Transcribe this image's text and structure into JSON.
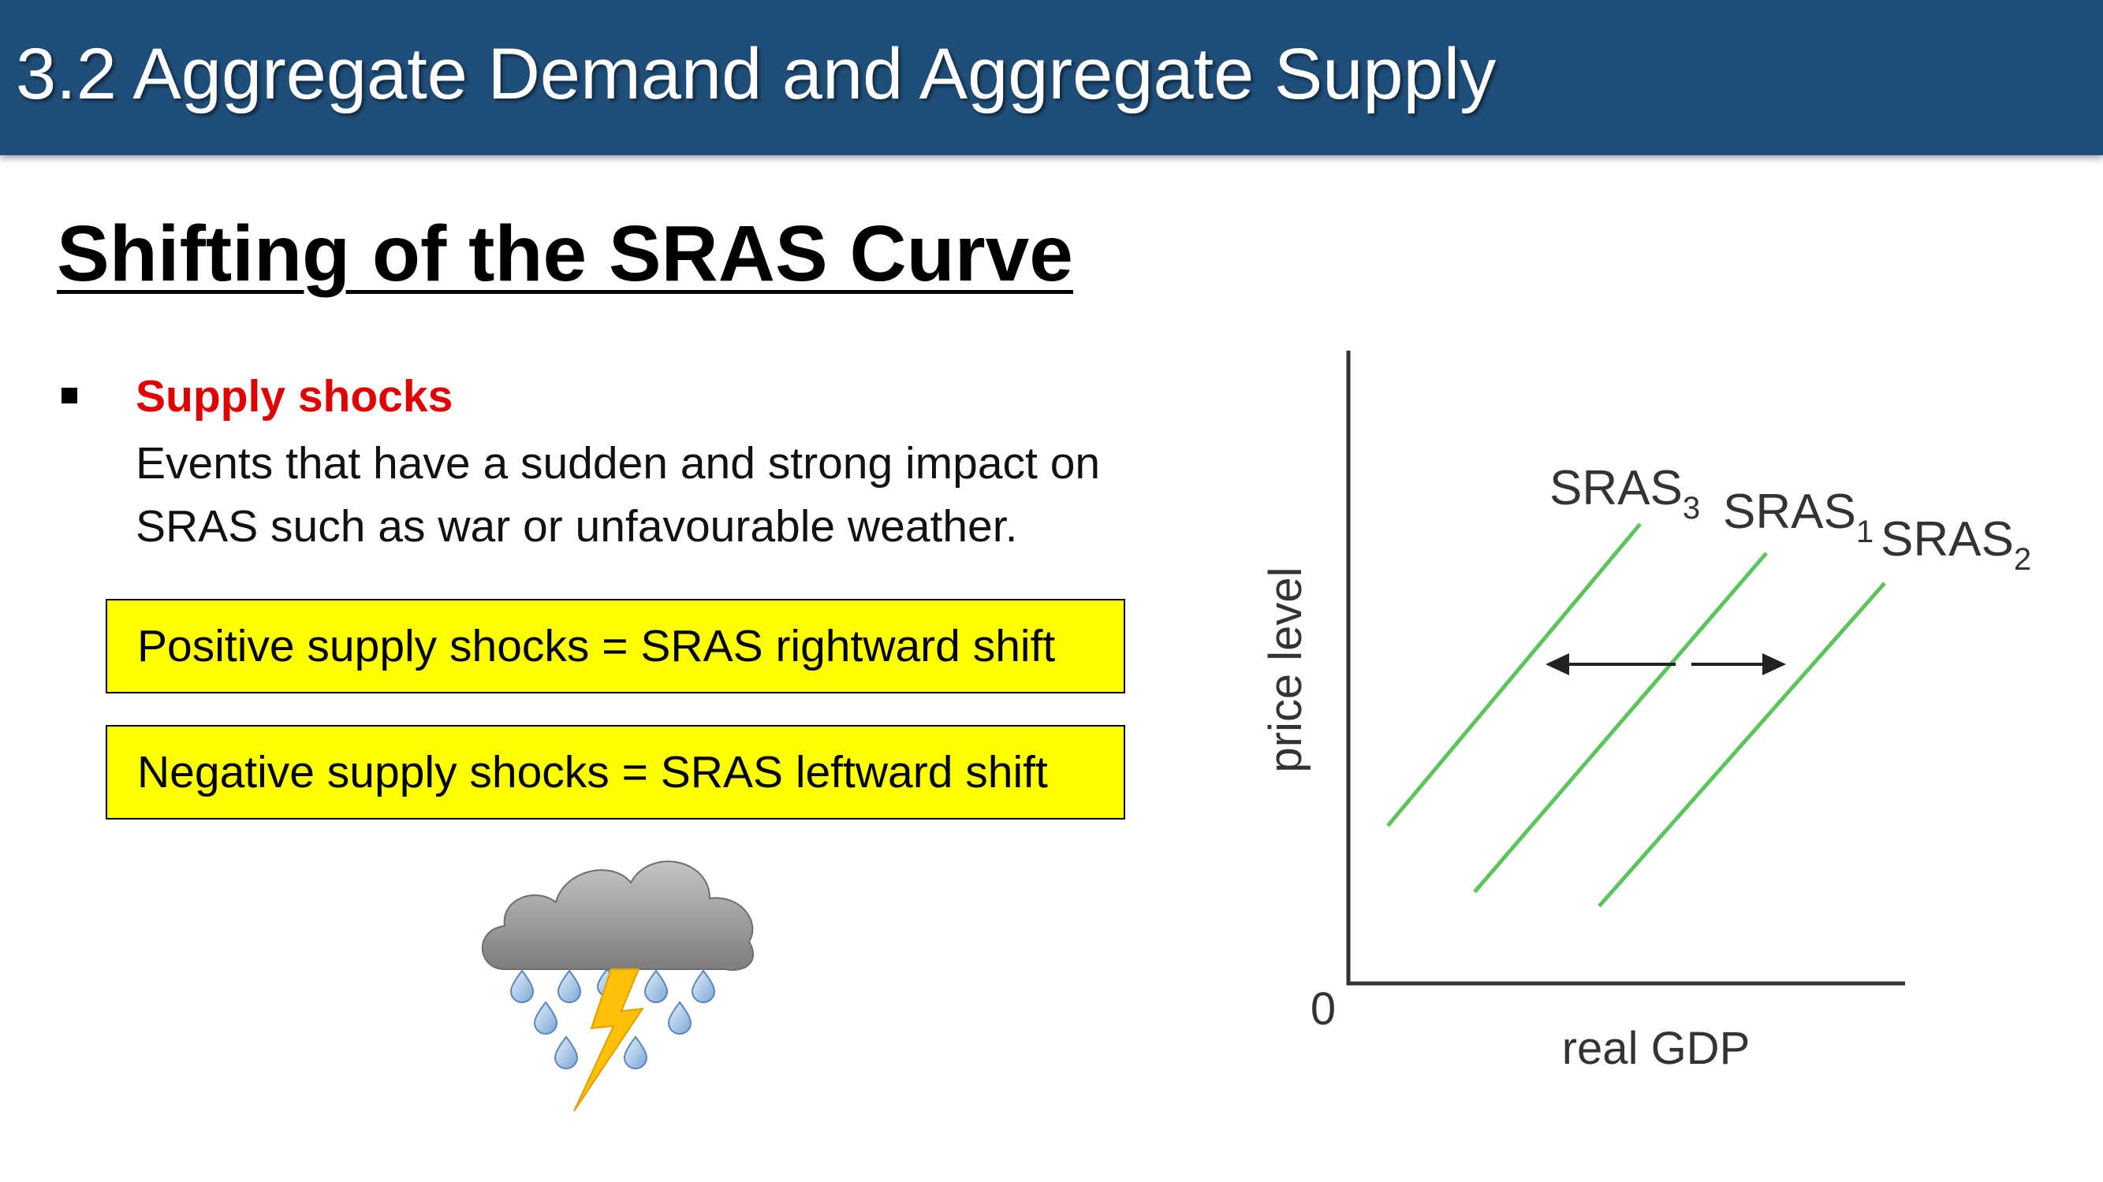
{
  "header": {
    "title": "3.2 Aggregate Demand and Aggregate Supply"
  },
  "slide": {
    "heading": "Shifting of the SRAS Curve"
  },
  "bullet": {
    "title": "Supply shocks",
    "desc_line1": "Events that have a sudden and strong impact on",
    "desc_line2": "SRAS such as war or unfavourable weather."
  },
  "boxes": {
    "positive": "Positive supply shocks = SRAS rightward shift",
    "negative": "Negative supply shocks = SRAS leftward shift"
  },
  "icons": {
    "storm": "thunderstorm-cloud-icon"
  },
  "colors": {
    "header_bg": "#1f4e79",
    "highlight": "#ffff00",
    "bullet_title": "#e00000",
    "curve": "#5cc45c"
  },
  "diagram": {
    "y_label": "price level",
    "x_label": "real GDP",
    "origin": "0",
    "curves": [
      {
        "base": "SRAS",
        "sub": "3"
      },
      {
        "base": "SRAS",
        "sub": "1"
      },
      {
        "base": "SRAS",
        "sub": "2"
      }
    ]
  }
}
